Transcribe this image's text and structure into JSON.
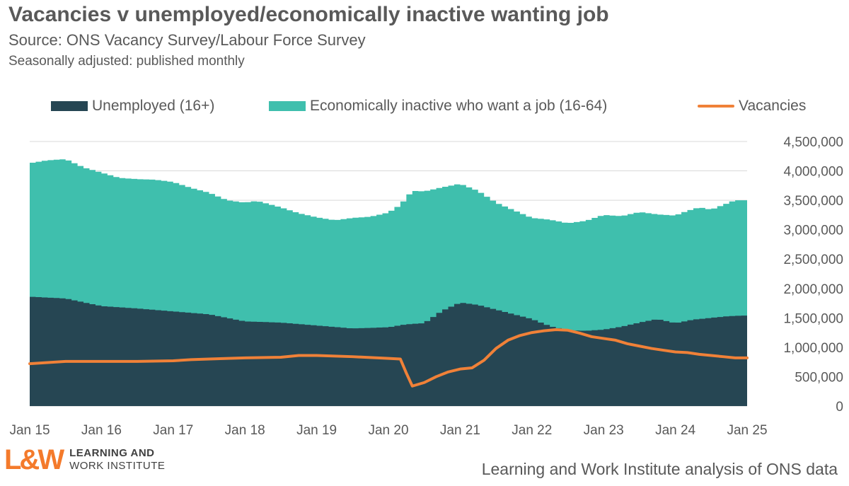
{
  "title": "Vacancies v unemployed/economically inactive wanting job",
  "subtitle": "Source: ONS Vacancy Survey/Labour Force Survey",
  "subtitle2": "Seasonally adjusted: published monthly",
  "footer": "Learning and Work Institute analysis of ONS data",
  "logo": {
    "mark": "L&W",
    "line1": "LEARNING AND",
    "line2": "WORK INSTITUTE"
  },
  "colors": {
    "unemployed": "#264653",
    "inactive": "#3fbfad",
    "vacancies": "#f08138",
    "grid": "#d9d9d9",
    "text": "#595959"
  },
  "chart_data": {
    "type": "area",
    "grid": "horizontal",
    "legend": "top",
    "ylim": [
      0,
      4500000
    ],
    "yticks": [
      {
        "value": 0,
        "label": "0"
      },
      {
        "value": 500000,
        "label": "500,000"
      },
      {
        "value": 1000000,
        "label": "1,000,000"
      },
      {
        "value": 1500000,
        "label": "1,500,000"
      },
      {
        "value": 2000000,
        "label": "2,000,000"
      },
      {
        "value": 2500000,
        "label": "2,500,000"
      },
      {
        "value": 3000000,
        "label": "3,000,000"
      },
      {
        "value": 3500000,
        "label": "3,500,000"
      },
      {
        "value": 4000000,
        "label": "4,000,000"
      },
      {
        "value": 4500000,
        "label": "4,500,000"
      }
    ],
    "x_start": "Jan 15",
    "x_end": "Jan 25",
    "xticks": [
      {
        "label": "Jan 15",
        "month": 0
      },
      {
        "label": "Jan 16",
        "month": 12
      },
      {
        "label": "Jan 17",
        "month": 24
      },
      {
        "label": "Jan 18",
        "month": 36
      },
      {
        "label": "Jan 19",
        "month": 48
      },
      {
        "label": "Jan 20",
        "month": 60
      },
      {
        "label": "Jan 21",
        "month": 72
      },
      {
        "label": "Jan 22",
        "month": 84
      },
      {
        "label": "Jan 23",
        "month": 96
      },
      {
        "label": "Jan 24",
        "month": 108
      },
      {
        "label": "Jan 25",
        "month": 120
      }
    ],
    "series": [
      {
        "name": "Unemployed (16+)",
        "style": "stacked-area",
        "points": [
          [
            0,
            1860000
          ],
          [
            6,
            1830000
          ],
          [
            12,
            1700000
          ],
          [
            18,
            1660000
          ],
          [
            24,
            1610000
          ],
          [
            30,
            1560000
          ],
          [
            36,
            1440000
          ],
          [
            42,
            1420000
          ],
          [
            48,
            1370000
          ],
          [
            54,
            1320000
          ],
          [
            60,
            1340000
          ],
          [
            63,
            1390000
          ],
          [
            66,
            1410000
          ],
          [
            69,
            1620000
          ],
          [
            72,
            1760000
          ],
          [
            75,
            1720000
          ],
          [
            78,
            1640000
          ],
          [
            81,
            1560000
          ],
          [
            84,
            1480000
          ],
          [
            87,
            1360000
          ],
          [
            90,
            1290000
          ],
          [
            93,
            1280000
          ],
          [
            96,
            1300000
          ],
          [
            99,
            1350000
          ],
          [
            102,
            1420000
          ],
          [
            105,
            1480000
          ],
          [
            108,
            1410000
          ],
          [
            111,
            1470000
          ],
          [
            114,
            1500000
          ],
          [
            117,
            1530000
          ],
          [
            120,
            1540000
          ]
        ]
      },
      {
        "name": "Economically inactive who want a job (16-64)",
        "style": "stacked-area",
        "points": [
          [
            0,
            4130000
          ],
          [
            3,
            4180000
          ],
          [
            6,
            4200000
          ],
          [
            9,
            4060000
          ],
          [
            12,
            3970000
          ],
          [
            15,
            3880000
          ],
          [
            18,
            3860000
          ],
          [
            21,
            3850000
          ],
          [
            24,
            3810000
          ],
          [
            27,
            3710000
          ],
          [
            30,
            3630000
          ],
          [
            33,
            3500000
          ],
          [
            36,
            3460000
          ],
          [
            38,
            3490000
          ],
          [
            42,
            3380000
          ],
          [
            45,
            3280000
          ],
          [
            48,
            3210000
          ],
          [
            51,
            3160000
          ],
          [
            54,
            3200000
          ],
          [
            57,
            3220000
          ],
          [
            60,
            3290000
          ],
          [
            62,
            3420000
          ],
          [
            64,
            3660000
          ],
          [
            66,
            3650000
          ],
          [
            69,
            3720000
          ],
          [
            72,
            3780000
          ],
          [
            75,
            3660000
          ],
          [
            78,
            3460000
          ],
          [
            81,
            3330000
          ],
          [
            84,
            3200000
          ],
          [
            87,
            3170000
          ],
          [
            90,
            3110000
          ],
          [
            93,
            3150000
          ],
          [
            96,
            3250000
          ],
          [
            99,
            3230000
          ],
          [
            102,
            3300000
          ],
          [
            105,
            3260000
          ],
          [
            108,
            3240000
          ],
          [
            110,
            3320000
          ],
          [
            112,
            3380000
          ],
          [
            114,
            3340000
          ],
          [
            116,
            3420000
          ],
          [
            118,
            3500000
          ],
          [
            120,
            3500000
          ]
        ]
      },
      {
        "name": "Vacancies",
        "style": "line",
        "points": [
          [
            0,
            720000
          ],
          [
            3,
            740000
          ],
          [
            6,
            760000
          ],
          [
            12,
            760000
          ],
          [
            18,
            760000
          ],
          [
            24,
            770000
          ],
          [
            27,
            790000
          ],
          [
            30,
            800000
          ],
          [
            36,
            820000
          ],
          [
            42,
            830000
          ],
          [
            45,
            860000
          ],
          [
            48,
            860000
          ],
          [
            54,
            840000
          ],
          [
            60,
            810000
          ],
          [
            62,
            800000
          ],
          [
            63,
            560000
          ],
          [
            64,
            340000
          ],
          [
            66,
            400000
          ],
          [
            68,
            500000
          ],
          [
            70,
            580000
          ],
          [
            72,
            630000
          ],
          [
            74,
            650000
          ],
          [
            76,
            780000
          ],
          [
            78,
            980000
          ],
          [
            80,
            1120000
          ],
          [
            82,
            1200000
          ],
          [
            84,
            1250000
          ],
          [
            86,
            1280000
          ],
          [
            88,
            1300000
          ],
          [
            90,
            1290000
          ],
          [
            92,
            1240000
          ],
          [
            94,
            1180000
          ],
          [
            96,
            1150000
          ],
          [
            98,
            1120000
          ],
          [
            100,
            1060000
          ],
          [
            102,
            1020000
          ],
          [
            104,
            980000
          ],
          [
            106,
            950000
          ],
          [
            108,
            920000
          ],
          [
            110,
            910000
          ],
          [
            112,
            880000
          ],
          [
            114,
            860000
          ],
          [
            116,
            840000
          ],
          [
            118,
            820000
          ],
          [
            120,
            820000
          ]
        ]
      }
    ]
  }
}
